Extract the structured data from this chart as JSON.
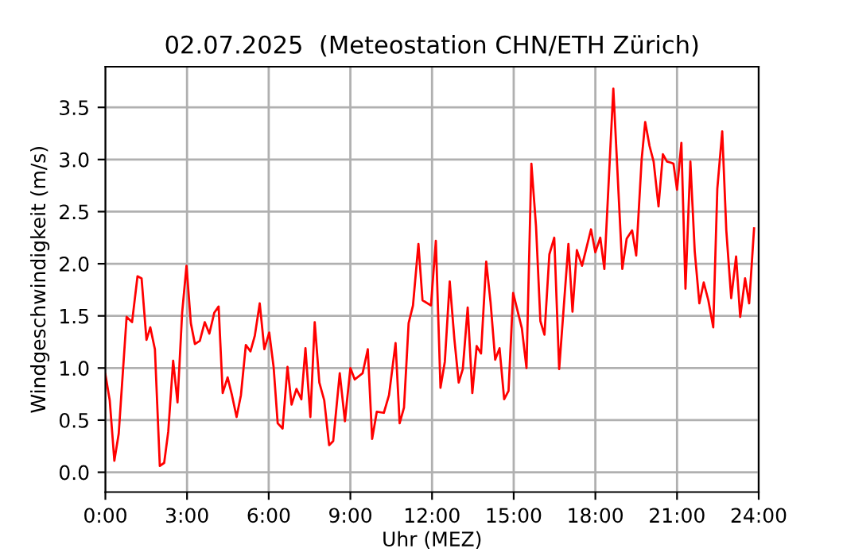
{
  "chart_data": {
    "type": "line",
    "title": "02.07.2025  (Meteostation CHN/ETH Zürich)",
    "xlabel": "Uhr (MEZ)",
    "ylabel": "Windgeschwindigkeit (m/s)",
    "x": [
      0,
      0.16,
      0.33,
      0.49,
      0.78,
      0.98,
      1.18,
      1.33,
      1.51,
      1.65,
      1.82,
      2.0,
      2.16,
      2.31,
      2.49,
      2.65,
      2.82,
      2.98,
      3.14,
      3.29,
      3.47,
      3.65,
      3.82,
      4.0,
      4.16,
      4.31,
      4.49,
      4.65,
      4.82,
      4.98,
      5.16,
      5.33,
      5.49,
      5.67,
      5.84,
      6.02,
      6.18,
      6.33,
      6.51,
      6.69,
      6.84,
      7.02,
      7.2,
      7.35,
      7.53,
      7.69,
      7.86,
      8.04,
      8.22,
      8.37,
      8.61,
      8.8,
      9.0,
      9.16,
      9.45,
      9.64,
      9.8,
      9.97,
      10.23,
      10.42,
      10.66,
      10.81,
      10.97,
      11.14,
      11.3,
      11.5,
      11.65,
      11.96,
      12.14,
      12.31,
      12.47,
      12.65,
      12.82,
      12.98,
      13.13,
      13.31,
      13.48,
      13.64,
      13.8,
      13.99,
      14.15,
      14.32,
      14.48,
      14.65,
      14.81,
      14.98,
      15.3,
      15.47,
      15.65,
      15.82,
      15.98,
      16.13,
      16.31,
      16.49,
      16.67,
      17.01,
      17.16,
      17.32,
      17.51,
      17.84,
      18.0,
      18.18,
      18.33,
      18.66,
      18.99,
      19.15,
      19.35,
      19.5,
      19.7,
      19.83,
      19.99,
      20.14,
      20.32,
      20.48,
      20.63,
      20.77,
      20.87,
      21.0,
      21.16,
      21.31,
      21.49,
      21.65,
      21.82,
      21.98,
      22.15,
      22.33,
      22.48,
      22.66,
      22.81,
      22.99,
      23.17,
      23.32,
      23.5,
      23.65,
      23.83
    ],
    "series": [
      {
        "color": "#ff0000",
        "values": [
          0.94,
          0.69,
          0.11,
          0.37,
          1.49,
          1.44,
          1.88,
          1.86,
          1.27,
          1.39,
          1.18,
          0.06,
          0.09,
          0.39,
          1.07,
          0.67,
          1.53,
          1.98,
          1.43,
          1.23,
          1.26,
          1.44,
          1.33,
          1.53,
          1.59,
          0.76,
          0.91,
          0.74,
          0.53,
          0.74,
          1.22,
          1.16,
          1.31,
          1.62,
          1.18,
          1.34,
          1.01,
          0.47,
          0.42,
          1.01,
          0.65,
          0.8,
          0.7,
          1.19,
          0.53,
          1.44,
          0.86,
          0.69,
          0.26,
          0.3,
          0.95,
          0.49,
          1.0,
          0.89,
          0.95,
          1.18,
          0.32,
          0.58,
          0.57,
          0.74,
          1.24,
          0.47,
          0.62,
          1.43,
          1.6,
          2.19,
          1.65,
          1.6,
          2.22,
          0.81,
          1.06,
          1.83,
          1.28,
          0.86,
          0.99,
          1.58,
          0.76,
          1.21,
          1.14,
          2.02,
          1.63,
          1.08,
          1.19,
          0.7,
          0.78,
          1.72,
          1.38,
          1.0,
          2.96,
          2.36,
          1.45,
          1.32,
          2.09,
          2.25,
          0.99,
          2.19,
          1.54,
          2.13,
          1.98,
          2.33,
          2.11,
          2.25,
          1.95,
          3.68,
          1.95,
          2.24,
          2.32,
          2.08,
          3.0,
          3.36,
          3.13,
          2.98,
          2.55,
          3.05,
          2.98,
          2.97,
          2.96,
          2.71,
          3.16,
          1.76,
          2.98,
          2.12,
          1.62,
          1.82,
          1.65,
          1.39,
          2.72,
          3.27,
          2.32,
          1.67,
          2.07,
          1.49,
          1.86,
          1.62,
          2.34
        ]
      }
    ],
    "xlim": [
      0,
      24
    ],
    "xticks": [
      {
        "value": 0,
        "label": "0:00"
      },
      {
        "value": 3,
        "label": "3:00"
      },
      {
        "value": 6,
        "label": "6:00"
      },
      {
        "value": 9,
        "label": "9:00"
      },
      {
        "value": 12,
        "label": "12:00"
      },
      {
        "value": 15,
        "label": "15:00"
      },
      {
        "value": 18,
        "label": "18:00"
      },
      {
        "value": 21,
        "label": "21:00"
      },
      {
        "value": 24,
        "label": "24:00"
      }
    ],
    "ylim": [
      -0.19,
      3.89
    ],
    "yticks": [
      {
        "value": 0,
        "label": "0.0"
      },
      {
        "value": 0.5,
        "label": "0.5"
      },
      {
        "value": 1,
        "label": "1.0"
      },
      {
        "value": 1.5,
        "label": "1.5"
      },
      {
        "value": 2,
        "label": "2.0"
      },
      {
        "value": 2.5,
        "label": "2.5"
      },
      {
        "value": 3,
        "label": "3.0"
      },
      {
        "value": 3.5,
        "label": "3.5"
      }
    ],
    "grid": true
  }
}
